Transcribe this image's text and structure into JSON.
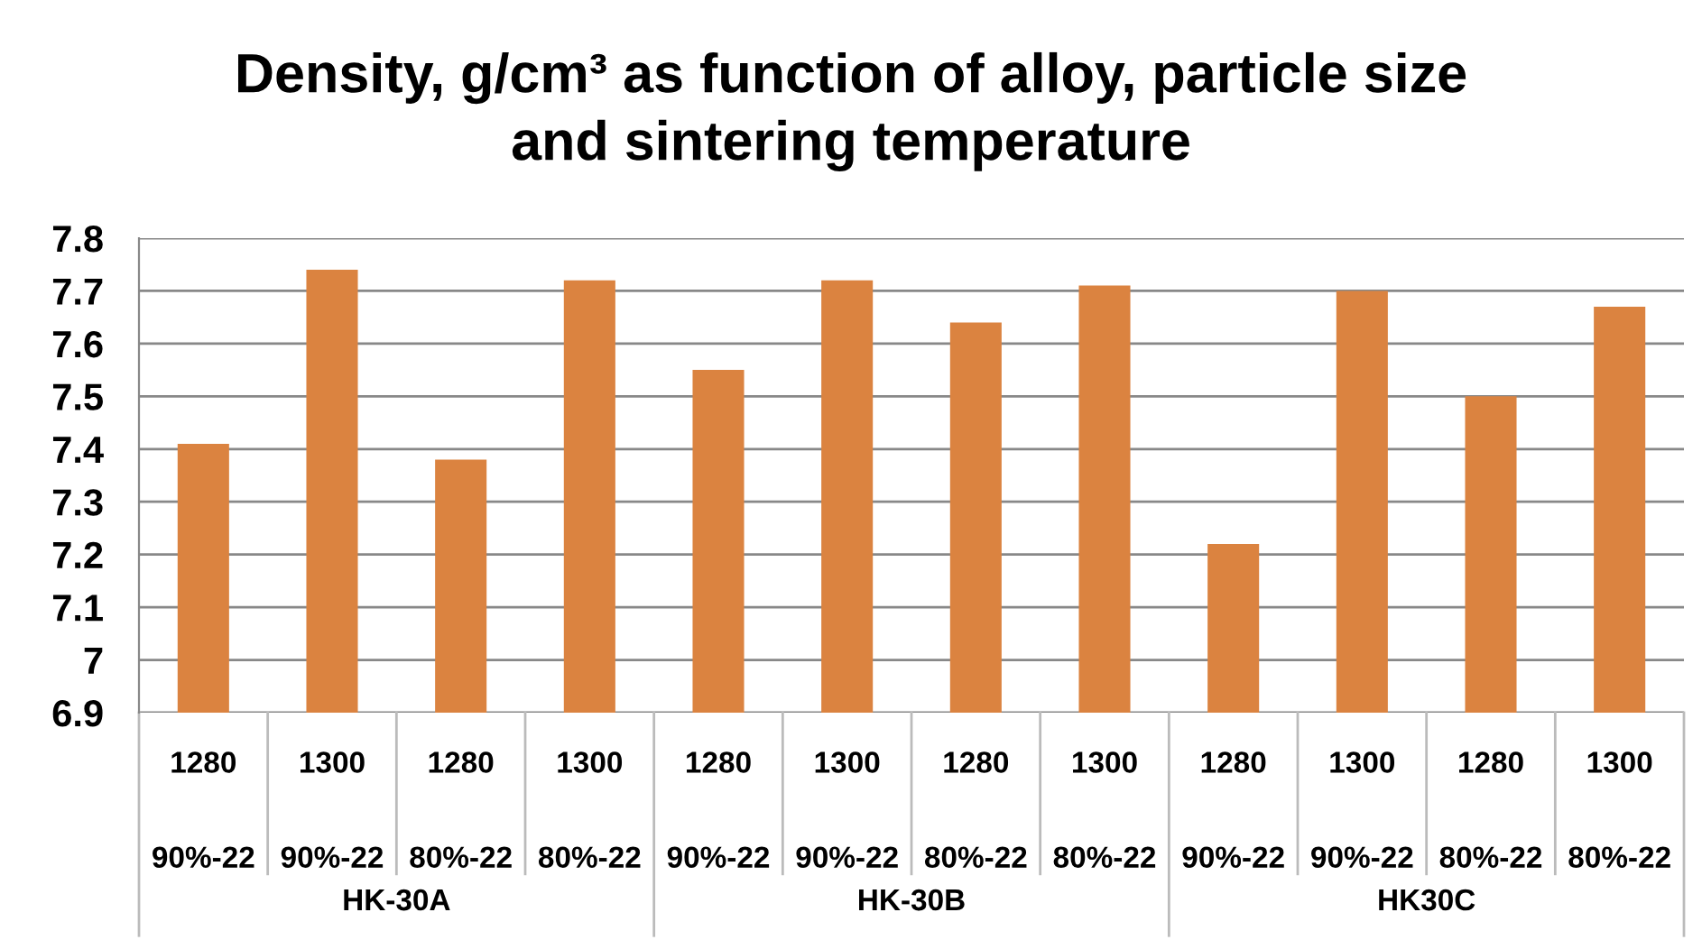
{
  "chart_data": {
    "type": "bar",
    "title": "Density, g/cm³ as function of alloy, particle size\nand sintering temperature",
    "categories": [
      "1280\n90%-22",
      "1300\n90%-22",
      "1280\n80%-22",
      "1300\n80%-22",
      "1280\n90%-22",
      "1300\n90%-22",
      "1280\n80%-22",
      "1300\n80%-22",
      "1280\n90%-22",
      "1300\n90%-22",
      "1280\n80%-22",
      "1300\n80%-22"
    ],
    "values": [
      7.41,
      7.74,
      7.38,
      7.72,
      7.55,
      7.72,
      7.64,
      7.71,
      7.22,
      7.7,
      7.5,
      7.67
    ],
    "color": "#db8340",
    "ylim": [
      6.9,
      7.8
    ],
    "yticks": [
      {
        "value": 6.9,
        "label": "6.9"
      },
      {
        "value": 7.0,
        "label": "7"
      },
      {
        "value": 7.1,
        "label": "7.1"
      },
      {
        "value": 7.2,
        "label": "7.2"
      },
      {
        "value": 7.3,
        "label": "7.3"
      },
      {
        "value": 7.4,
        "label": "7.4"
      },
      {
        "value": 7.5,
        "label": "7.5"
      },
      {
        "value": 7.6,
        "label": "7.6"
      },
      {
        "value": 7.7,
        "label": "7.7"
      },
      {
        "value": 7.8,
        "label": "7.8"
      }
    ],
    "grid": "y",
    "legend": false,
    "annotations": [
      "HK-30A",
      "HK-30B",
      "HK30C"
    ]
  }
}
